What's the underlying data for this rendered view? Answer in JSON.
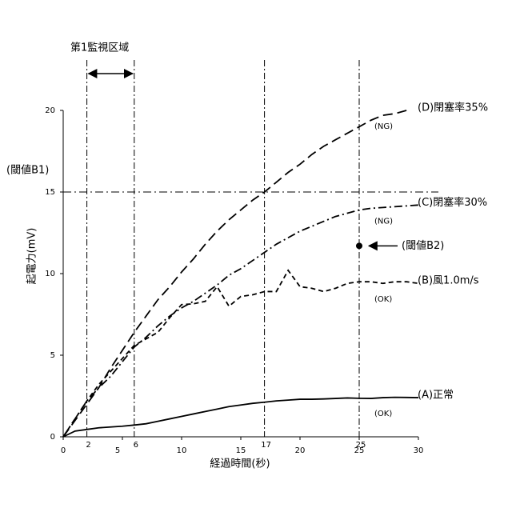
{
  "chart_data": {
    "type": "line",
    "x_label": "経過時間(秒)",
    "y_label": "起電力(mV)",
    "xlim": [
      0,
      30
    ],
    "ylim": [
      0,
      20
    ],
    "xticks": [
      0,
      5,
      10,
      15,
      20,
      25,
      30
    ],
    "yticks": [
      0,
      5,
      10,
      15,
      20
    ],
    "x": [
      0,
      1,
      2,
      3,
      4,
      5,
      6,
      7,
      8,
      9,
      10,
      11,
      12,
      13,
      14,
      15,
      16,
      17,
      18,
      19,
      20,
      21,
      22,
      23,
      24,
      25,
      26,
      27,
      28,
      29,
      30
    ],
    "series": [
      {
        "name": "(D)閉塞率35%",
        "note": "(NG)",
        "color": "#000000",
        "dash": "12,6",
        "values": [
          0,
          1,
          2,
          3,
          4.2,
          5.3,
          6.4,
          7.4,
          8.4,
          9.2,
          10.1,
          10.9,
          11.8,
          12.6,
          13.3,
          13.9,
          14.5,
          15,
          15.6,
          16.2,
          16.7,
          17.3,
          17.8,
          18.2,
          18.6,
          19,
          19.4,
          19.7,
          19.8,
          20,
          null
        ]
      },
      {
        "name": "(C)閉塞率30%",
        "note": "(NG)",
        "color": "#000000",
        "dash": "10,4,2,4",
        "values": [
          0,
          1.1,
          2.2,
          3,
          3.7,
          4.6,
          5.5,
          6.1,
          6.8,
          7.4,
          7.9,
          8.3,
          8.8,
          9.3,
          9.9,
          10.3,
          10.8,
          11.3,
          11.8,
          12.2,
          12.6,
          12.9,
          13.2,
          13.5,
          13.7,
          13.9,
          14,
          14.05,
          14.1,
          14.15,
          14.2
        ]
      },
      {
        "name": "(B)風1.0m/s",
        "note": "(OK)",
        "color": "#000000",
        "dash": "6,4",
        "values": [
          0,
          1.1,
          2.2,
          3.2,
          4,
          4.8,
          5.6,
          6,
          6.4,
          7.3,
          8.1,
          8.15,
          8.3,
          9.2,
          8,
          8.6,
          8.7,
          8.9,
          8.9,
          10.2,
          9.2,
          9.1,
          8.9,
          9.1,
          9.4,
          9.5,
          9.5,
          9.4,
          9.5,
          9.5,
          9.4
        ]
      },
      {
        "name": "(A)正常",
        "note": "(OK)",
        "color": "#000000",
        "dash": "none",
        "values": [
          0,
          0.35,
          0.45,
          0.55,
          0.6,
          0.65,
          0.72,
          0.8,
          0.95,
          1.1,
          1.25,
          1.4,
          1.55,
          1.7,
          1.85,
          1.95,
          2.05,
          2.12,
          2.2,
          2.25,
          2.3,
          2.3,
          2.32,
          2.35,
          2.38,
          2.36,
          2.35,
          2.4,
          2.42,
          2.41,
          2.4
        ]
      }
    ],
    "reference_x": [
      2,
      6,
      17,
      25
    ],
    "region": {
      "label": "第1監視区域",
      "from": 2,
      "to": 6
    },
    "threshold_b1": {
      "label": "(閾値B1)",
      "value": 15
    },
    "threshold_b2": {
      "label": "(閾値B2)",
      "x": 25,
      "value": 11.7
    }
  }
}
